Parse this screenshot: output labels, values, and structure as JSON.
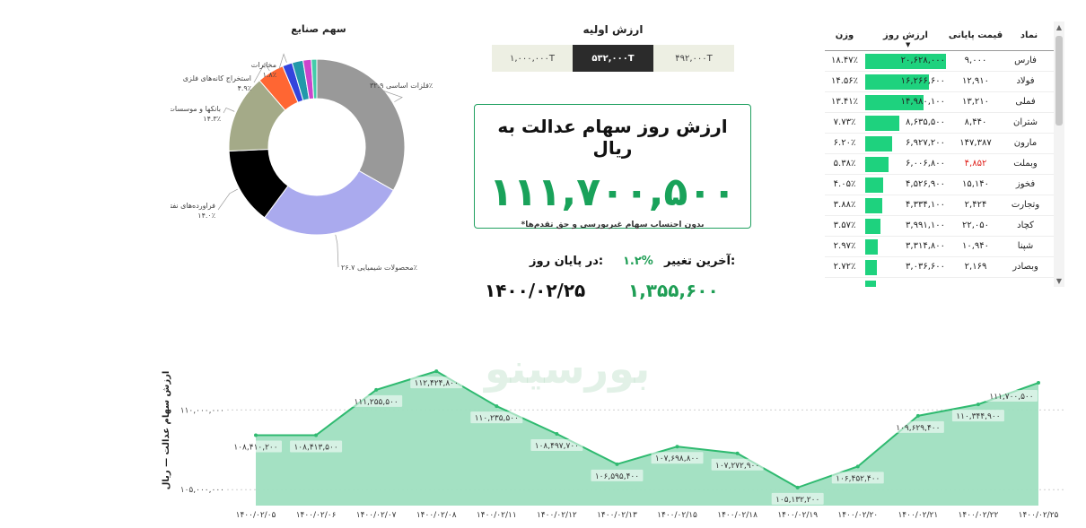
{
  "donut": {
    "title": "سهم صنایع",
    "labels": [
      {
        "name": "فلزات اساسی",
        "pct": "۳۲.۹٪"
      },
      {
        "name": "محصولات شیمیایی",
        "pct": "۲۶.۷٪"
      },
      {
        "name": "فراورده‌های نفتی",
        "pct": "۱۴.۰٪"
      },
      {
        "name": "...بانکها و موسسات ا",
        "pct": "۱۴.۳٪"
      },
      {
        "name": "استخراج کانه‌های فلزی",
        "pct": "۴.۹٪"
      },
      {
        "name": "مخابرات",
        "pct": "۱.۸٪"
      }
    ]
  },
  "initial_value": {
    "title": "ارزش اولیه",
    "options": [
      "۴۹۲,۰۰۰T",
      "۵۳۲,۰۰۰T",
      "۱,۰۰۰,۰۰۰T"
    ],
    "selected": "۵۳۲,۰۰۰T"
  },
  "card": {
    "title": "ارزش روز سهام عدالت به ریال",
    "value": "۱۱۱,۷۰۰,۵۰۰",
    "note": "*بدون احتساب سهام غیربورسی و حق تقدم‌ها"
  },
  "summary": {
    "change_label": "آخرین تغییر:",
    "change_value": "۱.۲%",
    "change_amount": "۱,۳۵۵,۶۰۰",
    "eod_label": "در پایان روز:",
    "eod_date": "۱۴۰۰/۰۲/۲۵"
  },
  "table": {
    "headers": {
      "symbol": "نماد",
      "price": "قیمت پایانی",
      "value": "ارزش روز",
      "weight": "وزن"
    },
    "rows": [
      {
        "symbol": "فارس",
        "price": "۹,۰۰۰",
        "value": "۲۰,۶۲۸,۰۰۰",
        "weight": "۱۸.۴۷٪",
        "ratio": 1.0,
        "price_color": "normal"
      },
      {
        "symbol": "فولاد",
        "price": "۱۲,۹۱۰",
        "value": "۱۶,۲۶۶,۶۰۰",
        "weight": "۱۴.۵۶٪",
        "ratio": 0.788,
        "price_color": "normal"
      },
      {
        "symbol": "فملی",
        "price": "۱۳,۲۱۰",
        "value": "۱۴,۹۸۰,۱۰۰",
        "weight": "۱۳.۴۱٪",
        "ratio": 0.726,
        "price_color": "normal"
      },
      {
        "symbol": "شتران",
        "price": "۸,۴۴۰",
        "value": "۸,۶۳۵,۵۰۰",
        "weight": "۷.۷۳٪",
        "ratio": 0.419,
        "price_color": "normal"
      },
      {
        "symbol": "مارون",
        "price": "۱۴۷,۳۸۷",
        "value": "۶,۹۲۷,۲۰۰",
        "weight": "۶.۲۰٪",
        "ratio": 0.336,
        "price_color": "normal"
      },
      {
        "symbol": "وبملت",
        "price": "۴,۸۵۲",
        "value": "۶,۰۰۶,۸۰۰",
        "weight": "۵.۳۸٪",
        "ratio": 0.291,
        "price_color": "red"
      },
      {
        "symbol": "فخوز",
        "price": "۱۵,۱۴۰",
        "value": "۴,۵۲۶,۹۰۰",
        "weight": "۴.۰۵٪",
        "ratio": 0.219,
        "price_color": "normal"
      },
      {
        "symbol": "وتجارت",
        "price": "۲,۴۲۴",
        "value": "۴,۳۳۴,۱۰۰",
        "weight": "۳.۸۸٪",
        "ratio": 0.21,
        "price_color": "normal"
      },
      {
        "symbol": "کچاد",
        "price": "۲۲,۰۵۰",
        "value": "۳,۹۹۱,۱۰۰",
        "weight": "۳.۵۷٪",
        "ratio": 0.193,
        "price_color": "normal"
      },
      {
        "symbol": "شپنا",
        "price": "۱۰,۹۴۰",
        "value": "۳,۳۱۴,۸۰۰",
        "weight": "۲.۹۷٪",
        "ratio": 0.161,
        "price_color": "normal"
      },
      {
        "symbol": "وبصادر",
        "price": "۲,۱۶۹",
        "value": "۳,۰۳۶,۶۰۰",
        "weight": "۲.۷۲٪",
        "ratio": 0.147,
        "price_color": "normal"
      },
      {
        "symbol": "",
        "price": "",
        "value": "",
        "weight": "",
        "ratio": 0.13,
        "price_color": "normal"
      }
    ]
  },
  "watermark": "بورسینو",
  "colors": {
    "accent": "#19a25a",
    "bar": "#1ed27e",
    "area_fill": "#9fdfc0",
    "area_line": "#2fba70",
    "red": "#e0211b"
  },
  "chart_data": [
    {
      "type": "pie",
      "title": "سهم صنایع",
      "labels": [
        "فلزات اساسی",
        "محصولات شیمیایی",
        "فراورده‌های نفتی",
        "...بانکها و موسسات ا",
        "استخراج کانه‌های فلزی",
        "مخابرات",
        "",
        "",
        ""
      ],
      "values": [
        32.9,
        26.7,
        14.0,
        14.3,
        4.9,
        1.8,
        2.0,
        1.5,
        1.0
      ],
      "colors": [
        "#999999",
        "#aaaaee",
        "#000000",
        "#a4aa88",
        "#ff6633",
        "#3344dd",
        "#2299aa",
        "#cc44cc",
        "#44ccaa"
      ],
      "donut": true
    },
    {
      "type": "area",
      "ylabel": "ارزش سهام عدالت — ریال",
      "x": [
        "۱۴۰۰/۰۲/۰۵",
        "۱۴۰۰/۰۲/۰۶",
        "۱۴۰۰/۰۲/۰۷",
        "۱۴۰۰/۰۲/۰۸",
        "۱۴۰۰/۰۲/۱۱",
        "۱۴۰۰/۰۲/۱۲",
        "۱۴۰۰/۰۲/۱۳",
        "۱۴۰۰/۰۲/۱۵",
        "۱۴۰۰/۰۲/۱۸",
        "۱۴۰۰/۰۲/۱۹",
        "۱۴۰۰/۰۲/۲۰",
        "۱۴۰۰/۰۲/۲۱",
        "۱۴۰۰/۰۲/۲۲",
        "۱۴۰۰/۰۲/۲۵"
      ],
      "values": [
        108410200,
        108413500,
        111255500,
        112424800,
        110235500,
        108497700,
        106595400,
        107698800,
        107272900,
        105132200,
        106452400,
        109629400,
        110344900,
        111700500
      ],
      "value_labels": [
        "۱۰۸,۴۱۰,۲۰۰",
        "۱۰۸,۴۱۳,۵۰۰",
        "۱۱۱,۲۵۵,۵۰۰",
        "۱۱۲,۴۲۴,۸۰۰",
        "۱۱۰,۲۳۵,۵۰۰",
        "۱۰۸,۴۹۷,۷۰۰",
        "۱۰۶,۵۹۵,۴۰۰",
        "۱۰۷,۶۹۸,۸۰۰",
        "۱۰۷,۲۷۲,۹۰۰",
        "۱۰۵,۱۳۲,۲۰۰",
        "۱۰۶,۴۵۲,۴۰۰",
        "۱۰۹,۶۲۹,۴۰۰",
        "۱۱۰,۳۴۴,۹۰۰",
        "۱۱۱,۷۰۰,۵۰۰"
      ],
      "yticks": [
        105000000,
        110000000
      ],
      "ytick_labels": [
        "۱۰۵,۰۰۰,۰۰۰",
        "۱۱۰,۰۰۰,۰۰۰"
      ],
      "ylim": [
        104000000,
        113500000
      ],
      "grid": true
    }
  ]
}
